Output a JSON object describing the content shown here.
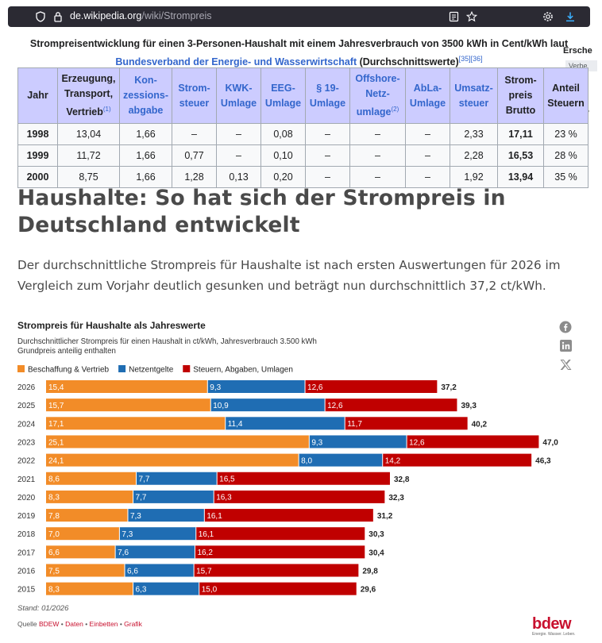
{
  "browser": {
    "url_domain": "de.wikipedia.org",
    "url_path": "/wiki/Strompreis"
  },
  "wiki": {
    "caption_part1": "Strompreisentwicklung für einen 3-Personen-Haushalt mit einem Jahresverbrauch von 3500 kWh in Cent/kWh laut",
    "caption_link": "Bundesverband der Energie- und Wasserwirtschaft",
    "caption_part2": " (Durchschnittswerte)",
    "caption_refs": "[35][36]",
    "side_label": "Ersche",
    "side_button": "Verbe",
    "side_quote": "‚",
    "headers": [
      {
        "text": "Jahr",
        "link": false,
        "ref": ""
      },
      {
        "text": "Erzeugung, Transport, Vertrieb",
        "link": false,
        "ref": "(1)"
      },
      {
        "text": "Kon-zessions-abgabe",
        "link": true,
        "ref": ""
      },
      {
        "text": "Strom-steuer",
        "link": true,
        "ref": ""
      },
      {
        "text": "KWK-Umlage",
        "link": true,
        "ref": ""
      },
      {
        "text": "EEG-Umlage",
        "link": true,
        "ref": ""
      },
      {
        "text": "§ 19-Umlage",
        "link": true,
        "ref": ""
      },
      {
        "text": "Offshore-Netz-umlage",
        "link": true,
        "ref": "(2)"
      },
      {
        "text": "AbLa-Umlage",
        "link": true,
        "ref": ""
      },
      {
        "text": "Umsatz-steuer",
        "link": true,
        "ref": ""
      },
      {
        "text": "Strom-preis Brutto",
        "link": false,
        "ref": ""
      },
      {
        "text": "Anteil Steuern",
        "link": false,
        "ref": ""
      }
    ],
    "rows": [
      [
        "1998",
        "13,04",
        "1,66",
        "–",
        "–",
        "0,08",
        "–",
        "–",
        "–",
        "2,33",
        "17,11",
        "23 %"
      ],
      [
        "1999",
        "11,72",
        "1,66",
        "0,77",
        "–",
        "0,10",
        "–",
        "–",
        "–",
        "2,28",
        "16,53",
        "28 %"
      ],
      [
        "2000",
        "8,75",
        "1,66",
        "1,28",
        "0,13",
        "0,20",
        "–",
        "–",
        "–",
        "1,92",
        "13,94",
        "35 %"
      ]
    ]
  },
  "article": {
    "title": "Haushalte: So hat sich der Strompreis in Deutschland entwickelt",
    "intro": "Der durchschnittliche Strompreis für Haushalte ist nach ersten Auswertungen für 2026 im Vergleich zum Vorjahr deutlich gesunken und beträgt nun durchschnittlich 37,2 ct/kWh."
  },
  "share": {
    "icons": [
      "facebook-icon",
      "linkedin-icon",
      "x-icon"
    ]
  },
  "chart_data": {
    "type": "bar",
    "orientation": "horizontal",
    "stacked": true,
    "title": "Strompreis für Haushalte als Jahreswerte",
    "subtitle_line1": "Durchschnittlicher Strompreis für einen Haushalt in ct/kWh, Jahresverbrauch 3.500 kWh",
    "subtitle_line2": "Grundpreis anteilig enthalten",
    "xlabel": "",
    "ylabel": "",
    "xlim": [
      0,
      47
    ],
    "grid": false,
    "legend_position": "top-left",
    "categories": [
      "2026",
      "2025",
      "2024",
      "2023",
      "2022",
      "2021",
      "2020",
      "2019",
      "2018",
      "2017",
      "2016",
      "2015"
    ],
    "series": [
      {
        "name": "Beschaffung & Vertrieb",
        "color": "#f28c28",
        "values": [
          15.4,
          15.7,
          17.1,
          25.1,
          24.1,
          8.6,
          8.3,
          7.8,
          7.0,
          6.6,
          7.5,
          8.3
        ]
      },
      {
        "name": "Netzentgelte",
        "color": "#1f6db3",
        "values": [
          9.3,
          10.9,
          11.4,
          9.3,
          8.0,
          7.7,
          7.7,
          7.3,
          7.3,
          7.6,
          6.6,
          6.3
        ]
      },
      {
        "name": "Steuern, Abgaben, Umlagen",
        "color": "#c00000",
        "values": [
          12.6,
          12.6,
          11.7,
          12.6,
          14.2,
          16.5,
          16.3,
          16.1,
          16.1,
          16.2,
          15.7,
          15.0
        ]
      }
    ],
    "totals": [
      37.2,
      39.3,
      40.2,
      47.0,
      46.3,
      32.8,
      32.3,
      31.2,
      30.3,
      30.4,
      29.8,
      29.6
    ],
    "label_decimal": ",",
    "stand": "Stand: 01/2026",
    "source_prefix": "Quelle ",
    "source_links": [
      "BDEW",
      "Daten",
      "Einbetten",
      "Grafik"
    ]
  },
  "brand": {
    "logo_text": "bdew",
    "logo_tagline": "Energie. Wasser. Leben.",
    "accent": "#c8102e"
  }
}
